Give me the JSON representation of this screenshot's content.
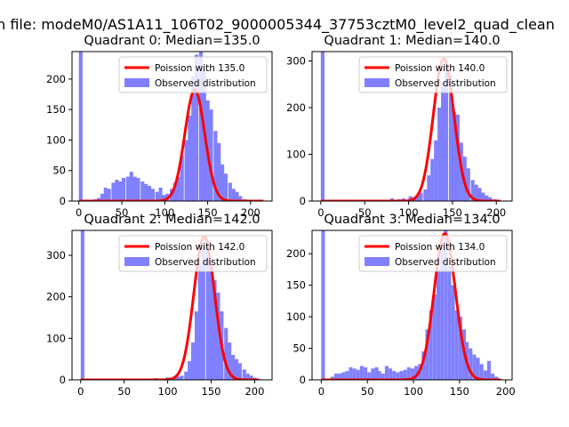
{
  "figure": {
    "suptitle": "n file: modeM0/AS1A11_106T02_9000005344_37753cztM0_level2_quad_clean",
    "colors": {
      "fit": "#ff0000",
      "hist": "#8080ff",
      "axis": "#000000"
    },
    "legend_labels": {
      "observed": "Observed distribution"
    }
  },
  "chart_data": [
    {
      "type": "bar",
      "title": "Quadrant 0: Median=135.0",
      "median": 135.0,
      "fit_label": "Poission with 135.0",
      "xlim": [
        -8,
        225
      ],
      "ylim": [
        0,
        245
      ],
      "xticks": [
        0,
        50,
        100,
        150,
        200
      ],
      "yticks": [
        0,
        50,
        100,
        150,
        200
      ],
      "legend_position": "upper-right",
      "bin_width": 4.25,
      "bins": [
        [
          0,
          245
        ],
        [
          17,
          3
        ],
        [
          21,
          5
        ],
        [
          25,
          12
        ],
        [
          29,
          22
        ],
        [
          33,
          20
        ],
        [
          38,
          30
        ],
        [
          42,
          35
        ],
        [
          46,
          32
        ],
        [
          50,
          38
        ],
        [
          55,
          40
        ],
        [
          59,
          48
        ],
        [
          63,
          40
        ],
        [
          67,
          38
        ],
        [
          72,
          32
        ],
        [
          76,
          28
        ],
        [
          80,
          25
        ],
        [
          84,
          20
        ],
        [
          89,
          15
        ],
        [
          93,
          22
        ],
        [
          97,
          10
        ],
        [
          101,
          12
        ],
        [
          106,
          20
        ],
        [
          110,
          30
        ],
        [
          114,
          40
        ],
        [
          118,
          75
        ],
        [
          123,
          100
        ],
        [
          127,
          140
        ],
        [
          131,
          205
        ],
        [
          135,
          240
        ],
        [
          140,
          245
        ],
        [
          144,
          215
        ],
        [
          148,
          165
        ],
        [
          152,
          150
        ],
        [
          157,
          115
        ],
        [
          161,
          95
        ],
        [
          165,
          60
        ],
        [
          169,
          45
        ],
        [
          174,
          30
        ],
        [
          178,
          20
        ],
        [
          182,
          15
        ],
        [
          186,
          8
        ],
        [
          191,
          3
        ]
      ],
      "fit": {
        "mean": 135.0,
        "sigma": 11.6,
        "peak": 182,
        "x_range": [
          0,
          215
        ]
      }
    },
    {
      "type": "bar",
      "title": "Quadrant 1: Median=140.0",
      "median": 140.0,
      "fit_label": "Poission with 140.0",
      "xlim": [
        -10,
        218
      ],
      "ylim": [
        0,
        320
      ],
      "xticks": [
        0,
        50,
        100,
        150,
        200
      ],
      "yticks": [
        0,
        100,
        200,
        300
      ],
      "legend_position": "upper-right",
      "bin_width": 4.15,
      "bins": [
        [
          0,
          320
        ],
        [
          79,
          6
        ],
        [
          87,
          4
        ],
        [
          92,
          6
        ],
        [
          96,
          3
        ],
        [
          100,
          10
        ],
        [
          104,
          8
        ],
        [
          108,
          12
        ],
        [
          112,
          18
        ],
        [
          117,
          25
        ],
        [
          121,
          55
        ],
        [
          125,
          90
        ],
        [
          129,
          130
        ],
        [
          133,
          200
        ],
        [
          137,
          255
        ],
        [
          141,
          290
        ],
        [
          146,
          270
        ],
        [
          150,
          190
        ],
        [
          154,
          185
        ],
        [
          158,
          125
        ],
        [
          162,
          95
        ],
        [
          166,
          70
        ],
        [
          171,
          45
        ],
        [
          175,
          35
        ],
        [
          179,
          28
        ],
        [
          183,
          18
        ],
        [
          187,
          12
        ],
        [
          191,
          8
        ],
        [
          196,
          4
        ],
        [
          200,
          2
        ]
      ],
      "fit": {
        "mean": 140.0,
        "sigma": 11.8,
        "peak": 305,
        "x_range": [
          0,
          205
        ]
      }
    },
    {
      "type": "bar",
      "title": "Quadrant 2: Median=142.0",
      "median": 142.0,
      "fit_label": "Poission with 142.0",
      "xlim": [
        -10,
        220
      ],
      "ylim": [
        0,
        360
      ],
      "xticks": [
        0,
        50,
        100,
        150,
        200
      ],
      "yticks": [
        0,
        100,
        200,
        300
      ],
      "legend_position": "upper-right",
      "bin_width": 4.2,
      "bins": [
        [
          0,
          360
        ],
        [
          84,
          4
        ],
        [
          98,
          6
        ],
        [
          102,
          3
        ],
        [
          106,
          5
        ],
        [
          110,
          8
        ],
        [
          114,
          10
        ],
        [
          119,
          20
        ],
        [
          123,
          45
        ],
        [
          127,
          90
        ],
        [
          131,
          165
        ],
        [
          135,
          280
        ],
        [
          139,
          320
        ],
        [
          144,
          335
        ],
        [
          148,
          270
        ],
        [
          152,
          240
        ],
        [
          156,
          210
        ],
        [
          160,
          165
        ],
        [
          165,
          125
        ],
        [
          169,
          90
        ],
        [
          173,
          60
        ],
        [
          177,
          50
        ],
        [
          181,
          40
        ],
        [
          186,
          25
        ],
        [
          190,
          15
        ],
        [
          194,
          10
        ],
        [
          198,
          5
        ],
        [
          202,
          2
        ]
      ],
      "fit": {
        "mean": 142.0,
        "sigma": 11.9,
        "peak": 345,
        "x_range": [
          0,
          205
        ]
      }
    },
    {
      "type": "bar",
      "title": "Quadrant 3: Median=134.0",
      "median": 134.0,
      "fit_label": "Poission with 134.0",
      "xlim": [
        -10,
        207
      ],
      "ylim": [
        0,
        237
      ],
      "xticks": [
        0,
        50,
        100,
        150,
        200
      ],
      "yticks": [
        0,
        50,
        100,
        150,
        200
      ],
      "legend_position": "upper-right",
      "bin_width": 3.9,
      "bins": [
        [
          0,
          237
        ],
        [
          10,
          5
        ],
        [
          14,
          10
        ],
        [
          18,
          10
        ],
        [
          22,
          12
        ],
        [
          26,
          14
        ],
        [
          30,
          20
        ],
        [
          34,
          18
        ],
        [
          38,
          16
        ],
        [
          42,
          22
        ],
        [
          46,
          20
        ],
        [
          50,
          12
        ],
        [
          54,
          18
        ],
        [
          58,
          20
        ],
        [
          61,
          14
        ],
        [
          65,
          10
        ],
        [
          69,
          22
        ],
        [
          73,
          18
        ],
        [
          77,
          14
        ],
        [
          81,
          12
        ],
        [
          85,
          14
        ],
        [
          89,
          16
        ],
        [
          93,
          20
        ],
        [
          97,
          18
        ],
        [
          101,
          22
        ],
        [
          105,
          25
        ],
        [
          109,
          45
        ],
        [
          113,
          80
        ],
        [
          117,
          110
        ],
        [
          121,
          135
        ],
        [
          125,
          175
        ],
        [
          129,
          205
        ],
        [
          133,
          237
        ],
        [
          137,
          180
        ],
        [
          141,
          150
        ],
        [
          145,
          110
        ],
        [
          149,
          100
        ],
        [
          153,
          80
        ],
        [
          156,
          60
        ],
        [
          160,
          50
        ],
        [
          164,
          40
        ],
        [
          168,
          35
        ],
        [
          172,
          25
        ],
        [
          176,
          15
        ],
        [
          180,
          30
        ],
        [
          184,
          10
        ],
        [
          188,
          5
        ]
      ],
      "fit": {
        "mean": 134.0,
        "sigma": 11.6,
        "peak": 232,
        "x_range": [
          0,
          195
        ]
      }
    }
  ]
}
